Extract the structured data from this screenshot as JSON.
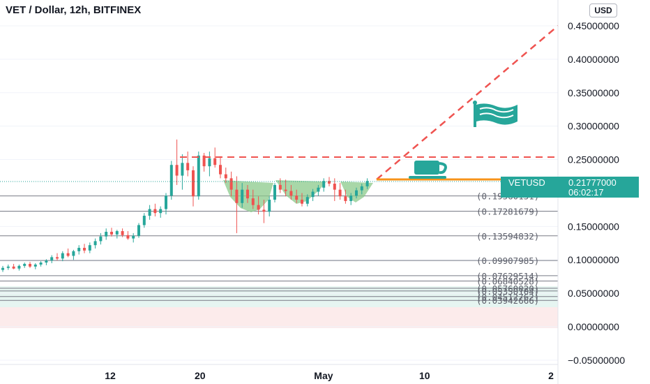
{
  "header": {
    "title": "VET / Dollar, 12h, BITFINEX",
    "currency": "USD"
  },
  "price_tag": {
    "symbol": "VETUSD",
    "price": "0.21777000",
    "countdown": "06:02:17"
  },
  "colors": {
    "up": "#26a69a",
    "down": "#ef5350",
    "target_line": "#ef5350",
    "current_line": "#f7931a",
    "cup_fill": "#8bc98b",
    "icons": "#26a69a"
  },
  "icons": [
    "flag-icon",
    "cup-icon"
  ],
  "chart_data": {
    "type": "candlestick",
    "y_range": [
      -0.05,
      0.45
    ],
    "y_ticks": [
      "0.45000000",
      "0.40000000",
      "0.35000000",
      "0.30000000",
      "0.25000000",
      "0.15000000",
      "0.10000000",
      "0.05000000",
      "0.00000000",
      "−0.05000000"
    ],
    "y_tick_values": [
      0.45,
      0.4,
      0.35,
      0.3,
      0.25,
      0.15,
      0.1,
      0.05,
      0.0,
      -0.05
    ],
    "x_ticks": [
      {
        "label": "12",
        "date": "2021-04-12"
      },
      {
        "label": "20",
        "date": "2021-04-20"
      },
      {
        "label": "May",
        "date": "2021-05-01"
      },
      {
        "label": "10",
        "date": "2021-05-10"
      },
      {
        "label": "2",
        "date": "2021-06-02"
      }
    ],
    "fib_levels": [
      {
        "label": "(0.19560151)",
        "value": 0.19560151
      },
      {
        "label": "(0.17281679)",
        "value": 0.17281679
      },
      {
        "label": "(0.13594832)",
        "value": 0.13594832
      },
      {
        "label": "(0.09907985)",
        "value": 0.09907985
      },
      {
        "label": "(0.07629514)",
        "value": 0.07629514
      },
      {
        "label": "(0.06840528)",
        "value": 0.06840528
      },
      {
        "label": "(0.05760020)",
        "value": 0.0576002
      },
      {
        "label": "(0.05350104)",
        "value": 0.05350104
      },
      {
        "label": "(0.04512762)",
        "value": 0.04512762
      },
      {
        "label": "(0.03942666)",
        "value": 0.03942666
      }
    ],
    "current_price": 0.21777,
    "resistance": 0.255,
    "target": 0.45,
    "candles": [
      {
        "o": 0.085,
        "h": 0.091,
        "l": 0.082,
        "c": 0.088
      },
      {
        "o": 0.088,
        "h": 0.093,
        "l": 0.085,
        "c": 0.09
      },
      {
        "o": 0.09,
        "h": 0.094,
        "l": 0.086,
        "c": 0.087
      },
      {
        "o": 0.087,
        "h": 0.093,
        "l": 0.084,
        "c": 0.091
      },
      {
        "o": 0.091,
        "h": 0.096,
        "l": 0.088,
        "c": 0.094
      },
      {
        "o": 0.094,
        "h": 0.097,
        "l": 0.088,
        "c": 0.09
      },
      {
        "o": 0.09,
        "h": 0.095,
        "l": 0.086,
        "c": 0.093
      },
      {
        "o": 0.093,
        "h": 0.098,
        "l": 0.09,
        "c": 0.096
      },
      {
        "o": 0.096,
        "h": 0.101,
        "l": 0.092,
        "c": 0.099
      },
      {
        "o": 0.099,
        "h": 0.107,
        "l": 0.095,
        "c": 0.104
      },
      {
        "o": 0.104,
        "h": 0.11,
        "l": 0.099,
        "c": 0.102
      },
      {
        "o": 0.102,
        "h": 0.113,
        "l": 0.098,
        "c": 0.11
      },
      {
        "o": 0.11,
        "h": 0.117,
        "l": 0.104,
        "c": 0.106
      },
      {
        "o": 0.106,
        "h": 0.115,
        "l": 0.1,
        "c": 0.113
      },
      {
        "o": 0.113,
        "h": 0.122,
        "l": 0.108,
        "c": 0.118
      },
      {
        "o": 0.118,
        "h": 0.124,
        "l": 0.11,
        "c": 0.114
      },
      {
        "o": 0.114,
        "h": 0.126,
        "l": 0.11,
        "c": 0.122
      },
      {
        "o": 0.122,
        "h": 0.132,
        "l": 0.117,
        "c": 0.128
      },
      {
        "o": 0.128,
        "h": 0.14,
        "l": 0.123,
        "c": 0.135
      },
      {
        "o": 0.135,
        "h": 0.147,
        "l": 0.13,
        "c": 0.142
      },
      {
        "o": 0.142,
        "h": 0.148,
        "l": 0.135,
        "c": 0.138
      },
      {
        "o": 0.138,
        "h": 0.145,
        "l": 0.132,
        "c": 0.143
      },
      {
        "o": 0.143,
        "h": 0.147,
        "l": 0.134,
        "c": 0.137
      },
      {
        "o": 0.137,
        "h": 0.143,
        "l": 0.13,
        "c": 0.132
      },
      {
        "o": 0.132,
        "h": 0.14,
        "l": 0.126,
        "c": 0.136
      },
      {
        "o": 0.136,
        "h": 0.155,
        "l": 0.133,
        "c": 0.152
      },
      {
        "o": 0.152,
        "h": 0.17,
        "l": 0.148,
        "c": 0.166
      },
      {
        "o": 0.166,
        "h": 0.182,
        "l": 0.16,
        "c": 0.176
      },
      {
        "o": 0.176,
        "h": 0.184,
        "l": 0.165,
        "c": 0.17
      },
      {
        "o": 0.17,
        "h": 0.18,
        "l": 0.163,
        "c": 0.176
      },
      {
        "o": 0.176,
        "h": 0.2,
        "l": 0.168,
        "c": 0.196
      },
      {
        "o": 0.196,
        "h": 0.248,
        "l": 0.19,
        "c": 0.242
      },
      {
        "o": 0.242,
        "h": 0.28,
        "l": 0.212,
        "c": 0.226
      },
      {
        "o": 0.226,
        "h": 0.258,
        "l": 0.205,
        "c": 0.245
      },
      {
        "o": 0.245,
        "h": 0.262,
        "l": 0.225,
        "c": 0.234
      },
      {
        "o": 0.234,
        "h": 0.24,
        "l": 0.18,
        "c": 0.195
      },
      {
        "o": 0.195,
        "h": 0.262,
        "l": 0.19,
        "c": 0.256
      },
      {
        "o": 0.256,
        "h": 0.26,
        "l": 0.232,
        "c": 0.24
      },
      {
        "o": 0.24,
        "h": 0.262,
        "l": 0.225,
        "c": 0.252
      },
      {
        "o": 0.252,
        "h": 0.268,
        "l": 0.238,
        "c": 0.242
      },
      {
        "o": 0.242,
        "h": 0.255,
        "l": 0.222,
        "c": 0.228
      },
      {
        "o": 0.228,
        "h": 0.238,
        "l": 0.215,
        "c": 0.222
      },
      {
        "o": 0.222,
        "h": 0.232,
        "l": 0.195,
        "c": 0.205
      },
      {
        "o": 0.205,
        "h": 0.225,
        "l": 0.14,
        "c": 0.185
      },
      {
        "o": 0.185,
        "h": 0.215,
        "l": 0.178,
        "c": 0.205
      },
      {
        "o": 0.205,
        "h": 0.212,
        "l": 0.185,
        "c": 0.192
      },
      {
        "o": 0.192,
        "h": 0.205,
        "l": 0.176,
        "c": 0.182
      },
      {
        "o": 0.182,
        "h": 0.195,
        "l": 0.168,
        "c": 0.175
      },
      {
        "o": 0.175,
        "h": 0.19,
        "l": 0.155,
        "c": 0.172
      },
      {
        "o": 0.172,
        "h": 0.195,
        "l": 0.165,
        "c": 0.19
      },
      {
        "o": 0.19,
        "h": 0.215,
        "l": 0.186,
        "c": 0.212
      },
      {
        "o": 0.212,
        "h": 0.222,
        "l": 0.2,
        "c": 0.205
      },
      {
        "o": 0.205,
        "h": 0.22,
        "l": 0.195,
        "c": 0.203
      },
      {
        "o": 0.203,
        "h": 0.212,
        "l": 0.19,
        "c": 0.196
      },
      {
        "o": 0.196,
        "h": 0.205,
        "l": 0.185,
        "c": 0.19
      },
      {
        "o": 0.19,
        "h": 0.2,
        "l": 0.18,
        "c": 0.184
      },
      {
        "o": 0.184,
        "h": 0.198,
        "l": 0.18,
        "c": 0.194
      },
      {
        "o": 0.194,
        "h": 0.206,
        "l": 0.188,
        "c": 0.202
      },
      {
        "o": 0.202,
        "h": 0.212,
        "l": 0.196,
        "c": 0.208
      },
      {
        "o": 0.208,
        "h": 0.222,
        "l": 0.202,
        "c": 0.218
      },
      {
        "o": 0.218,
        "h": 0.224,
        "l": 0.21,
        "c": 0.214
      },
      {
        "o": 0.214,
        "h": 0.222,
        "l": 0.188,
        "c": 0.205
      },
      {
        "o": 0.205,
        "h": 0.215,
        "l": 0.19,
        "c": 0.195
      },
      {
        "o": 0.195,
        "h": 0.205,
        "l": 0.184,
        "c": 0.188
      },
      {
        "o": 0.188,
        "h": 0.2,
        "l": 0.182,
        "c": 0.196
      },
      {
        "o": 0.196,
        "h": 0.208,
        "l": 0.192,
        "c": 0.204
      },
      {
        "o": 0.204,
        "h": 0.214,
        "l": 0.198,
        "c": 0.21
      },
      {
        "o": 0.21,
        "h": 0.222,
        "l": 0.206,
        "c": 0.218
      }
    ]
  }
}
